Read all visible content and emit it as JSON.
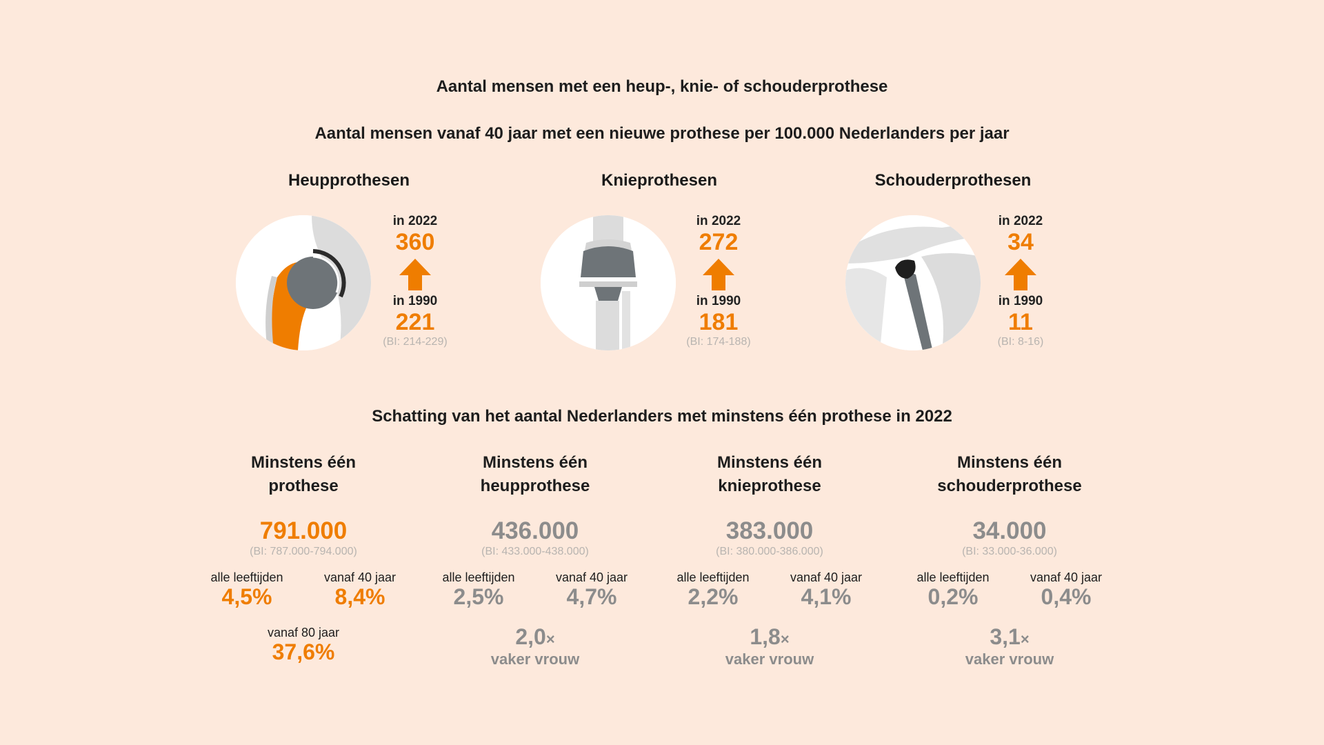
{
  "title": "Aantal mensen met een heup-, knie- of schouderprothese",
  "subtitle": "Aantal mensen vanaf 40 jaar met een nieuwe prothese per 100.000 Nederlanders per jaar",
  "colors": {
    "accent": "#ef7d00",
    "grey_value": "#8c8c8c",
    "background": "#fde9dc"
  },
  "groups": [
    {
      "title": "Heupprothesen",
      "icon": "hip-joint-icon",
      "label_2022": "in 2022",
      "value_2022": "360",
      "label_1990": "in 1990",
      "value_1990": "221",
      "ci": "(BI: 214-229)"
    },
    {
      "title": "Knieprothesen",
      "icon": "knee-joint-icon",
      "label_2022": "in 2022",
      "value_2022": "272",
      "label_1990": "in 1990",
      "value_1990": "181",
      "ci": "(BI: 174-188)"
    },
    {
      "title": "Schouderprothesen",
      "icon": "shoulder-joint-icon",
      "label_2022": "in 2022",
      "value_2022": "34",
      "label_1990": "in 1990",
      "value_1990": "11",
      "ci": "(BI: 8-16)"
    }
  ],
  "estimate_title": "Schatting van het aantal Nederlanders met minstens één prothese in 2022",
  "columns": [
    {
      "title_line1": "Minstens één",
      "title_line2": "prothese",
      "total": "791.000",
      "total_ci": "(BI: 787.000-794.000)",
      "label_all": "alle leeftijden",
      "pct_all": "4,5%",
      "label_40": "vanaf 40 jaar",
      "pct_40": "8,4%",
      "label_80": "vanaf 80 jaar",
      "pct_80": "37,6%"
    },
    {
      "title_line1": "Minstens één",
      "title_line2": "heupprothese",
      "total": "436.000",
      "total_ci": "(BI: 433.000-438.000)",
      "label_all": "alle leeftijden",
      "pct_all": "2,5%",
      "label_40": "vanaf 40 jaar",
      "pct_40": "4,7%",
      "multiplier": "2,0",
      "times": "×",
      "vaker": "vaker vrouw"
    },
    {
      "title_line1": "Minstens één",
      "title_line2": "knieprothese",
      "total": "383.000",
      "total_ci": "(BI: 380.000-386.000)",
      "label_all": "alle leeftijden",
      "pct_all": "2,2%",
      "label_40": "vanaf 40 jaar",
      "pct_40": "4,1%",
      "multiplier": "1,8",
      "times": "×",
      "vaker": "vaker vrouw"
    },
    {
      "title_line1": "Minstens één",
      "title_line2": "schouderprothese",
      "total": "34.000",
      "total_ci": "(BI: 33.000-36.000)",
      "label_all": "alle leeftijden",
      "pct_all": "0,2%",
      "label_40": "vanaf 40 jaar",
      "pct_40": "0,4%",
      "multiplier": "3,1",
      "times": "×",
      "vaker": "vaker vrouw"
    }
  ]
}
